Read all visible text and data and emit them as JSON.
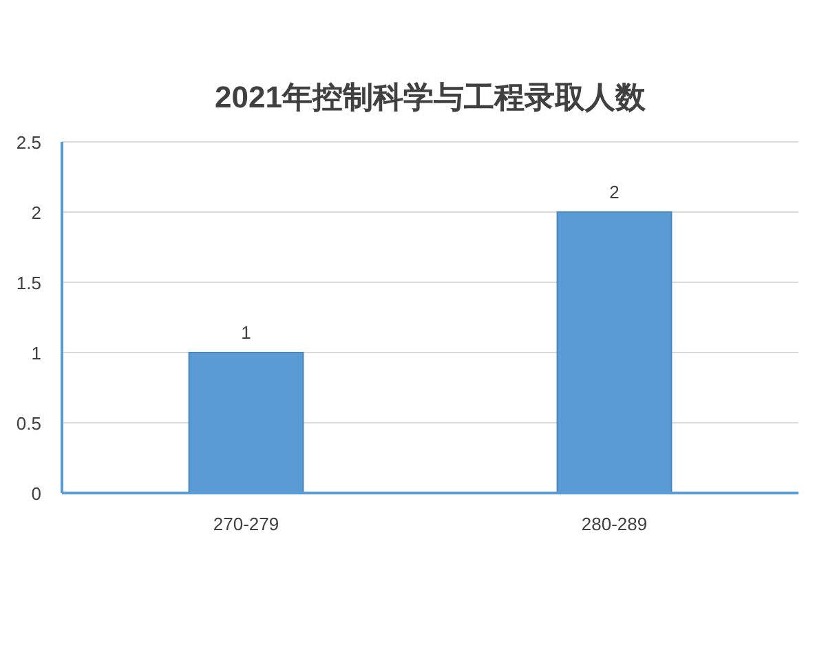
{
  "chart_data": {
    "type": "bar",
    "title": "2021年控制科学与工程录取人数",
    "categories": [
      "270-279",
      "280-289"
    ],
    "values": [
      1,
      2
    ],
    "color": "#5b9bd5",
    "ylim": [
      0,
      2.5
    ],
    "yticks": [
      0,
      0.5,
      1,
      1.5,
      2,
      2.5
    ],
    "grid": "y",
    "data_labels": true
  }
}
